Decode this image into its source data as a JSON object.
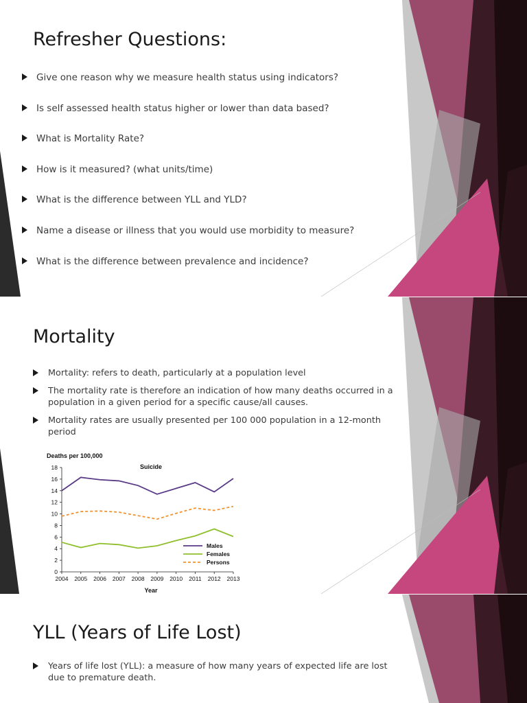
{
  "colors": {
    "accent_pink": "#c5477e",
    "accent_mauve": "#9a4b6b",
    "accent_dark": "#2a1419",
    "accent_grey": "#8a8a8a"
  },
  "slides": [
    {
      "title": "Refresher Questions:",
      "bullets": [
        "Give one reason why we measure health status using indicators?",
        "Is self assessed health status higher or lower than data based?",
        "What is Mortality Rate?",
        "How is it measured? (what units/time)",
        "What is the difference between YLL and YLD?",
        "Name a disease or illness that you would use morbidity to measure?",
        "What is the difference between prevalence and incidence?"
      ]
    },
    {
      "title": "Mortality",
      "bullets": [
        "Mortality: refers to death, particularly at a population level",
        "The mortality rate is therefore an indication of how many deaths occurred in a population in a given period for a specific cause/all causes.",
        "Mortality rates are usually presented per 100 000 population in a 12-month period"
      ]
    },
    {
      "title": "YLL (Years of Life Lost)",
      "bullets": [
        "Years of life lost (YLL): a measure of how many years of expected life are lost due to premature death."
      ]
    }
  ],
  "chart_data": {
    "type": "line",
    "title": "Suicide",
    "ylabel": "Deaths per 100,000",
    "xlabel": "Year",
    "x": [
      "2004",
      "2005",
      "2006",
      "2007",
      "2008",
      "2009",
      "2010",
      "2011",
      "2012",
      "2013"
    ],
    "ylim": [
      0,
      18
    ],
    "yticks": [
      "0",
      "2",
      "4",
      "6",
      "8",
      "10",
      "12",
      "14",
      "16",
      "18"
    ],
    "grid": false,
    "legend_position": "bottom-right",
    "series": [
      {
        "name": "Males",
        "color": "#5a3a86",
        "style": "solid",
        "values": [
          14.0,
          16.3,
          15.9,
          15.7,
          14.9,
          13.4,
          14.4,
          15.4,
          13.8,
          16.1
        ]
      },
      {
        "name": "Females",
        "color": "#8fbf2a",
        "style": "solid",
        "values": [
          5.1,
          4.2,
          4.9,
          4.7,
          4.1,
          4.5,
          5.4,
          6.2,
          7.4,
          6.1
        ]
      },
      {
        "name": "Persons",
        "color": "#f0922e",
        "style": "dashed",
        "values": [
          9.6,
          10.4,
          10.5,
          10.3,
          9.7,
          9.1,
          10.1,
          11.0,
          10.6,
          11.3
        ]
      }
    ]
  }
}
